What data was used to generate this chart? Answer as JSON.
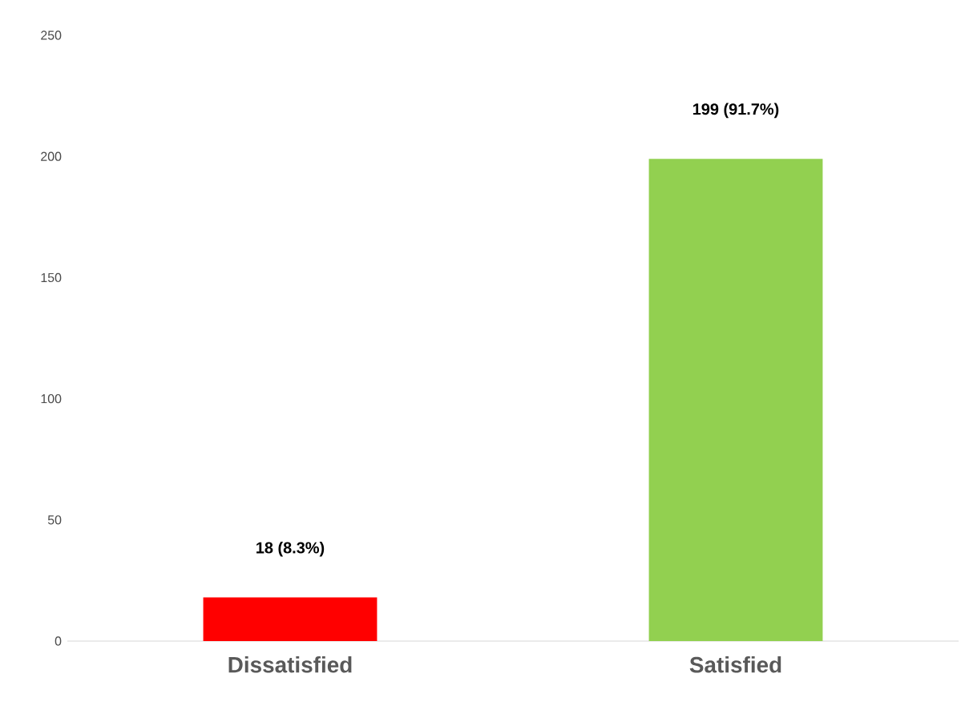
{
  "chart_data": {
    "type": "bar",
    "categories": [
      "Dissatisfied",
      "Satisfied"
    ],
    "values": [
      18,
      199
    ],
    "colors": [
      "#ff0000",
      "#92d050"
    ],
    "value_labels": [
      "18 (8.3%)",
      "199 (91.7%)"
    ],
    "ylim": [
      0,
      250
    ],
    "yticks": [
      0,
      50,
      100,
      150,
      200,
      250
    ]
  }
}
